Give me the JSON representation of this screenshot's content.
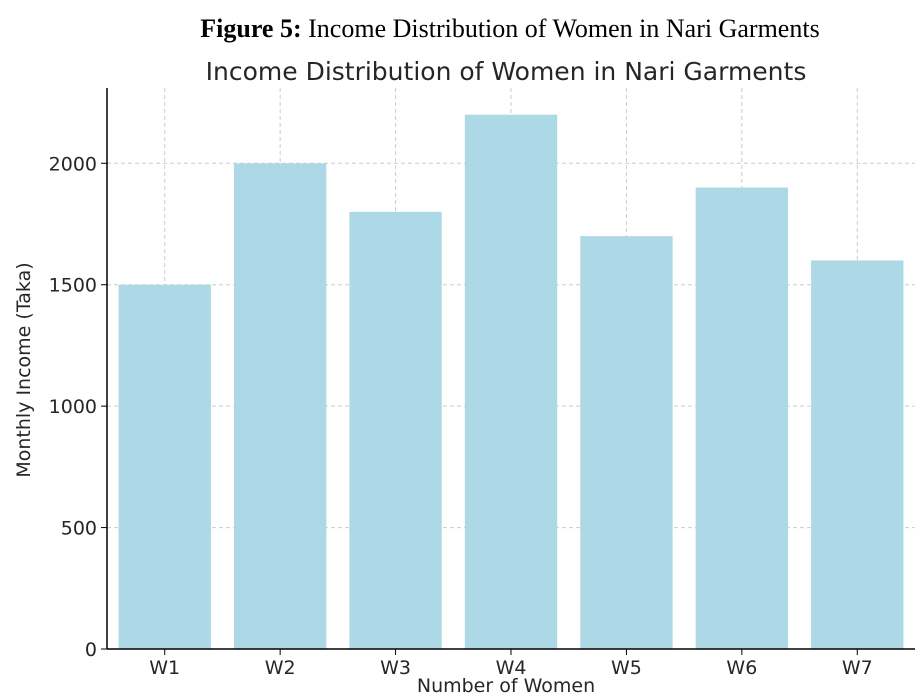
{
  "figure_caption": {
    "label": "Figure 5:",
    "text": " Income Distribution of Women in Nari Garments"
  },
  "chart_data": {
    "type": "bar",
    "title": "Income Distribution of Women in Nari Garments",
    "xlabel": "Number of Women",
    "ylabel": "Monthly Income (Taka)",
    "categories": [
      "W1",
      "W2",
      "W3",
      "W4",
      "W5",
      "W6",
      "W7"
    ],
    "values": [
      1500,
      2000,
      1800,
      2200,
      1700,
      1900,
      1600
    ],
    "ylim": [
      0,
      2310
    ],
    "yticks": [
      0,
      500,
      1000,
      1500,
      2000
    ],
    "grid": true,
    "bar_color": "#add8e6",
    "grid_color": "#cccccc",
    "axis_color": "#000000"
  }
}
